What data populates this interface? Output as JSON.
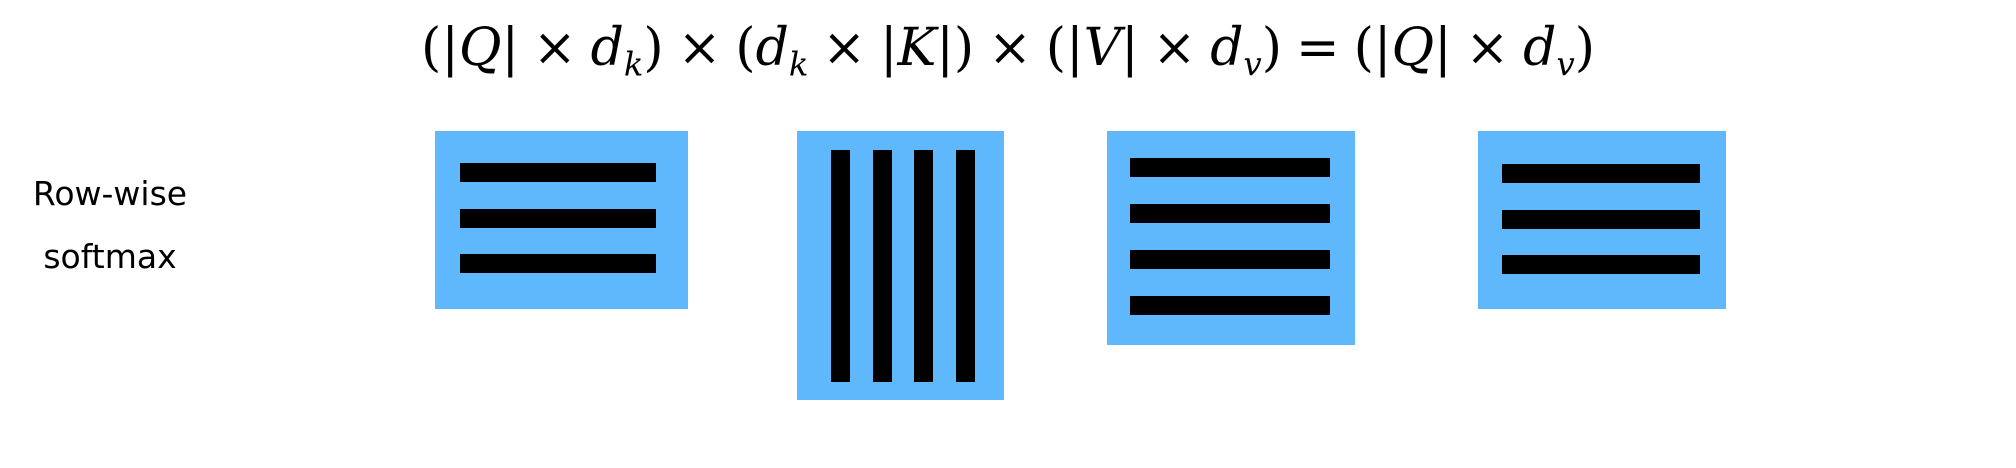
{
  "equation": {
    "q_abs": "|Q|",
    "k_abs": "|K|",
    "v_abs": "|V|",
    "d": "d",
    "sub_k": "k",
    "sub_v": "v",
    "times": "×",
    "equals": "=",
    "open_paren": "(",
    "close_paren": ")"
  },
  "label": {
    "line1": "Row-wise",
    "line2": "softmax"
  },
  "colors": {
    "matrix_fill": "#5FB8FB",
    "bar_fill": "#000000"
  },
  "matrices": [
    {
      "name": "qk-result-matrix",
      "orientation": "rows",
      "count": 3
    },
    {
      "name": "kv-transposed-matrix",
      "orientation": "columns",
      "count": 4
    },
    {
      "name": "v-matrix",
      "orientation": "rows",
      "count": 4
    },
    {
      "name": "output-matrix",
      "orientation": "rows",
      "count": 3
    }
  ]
}
